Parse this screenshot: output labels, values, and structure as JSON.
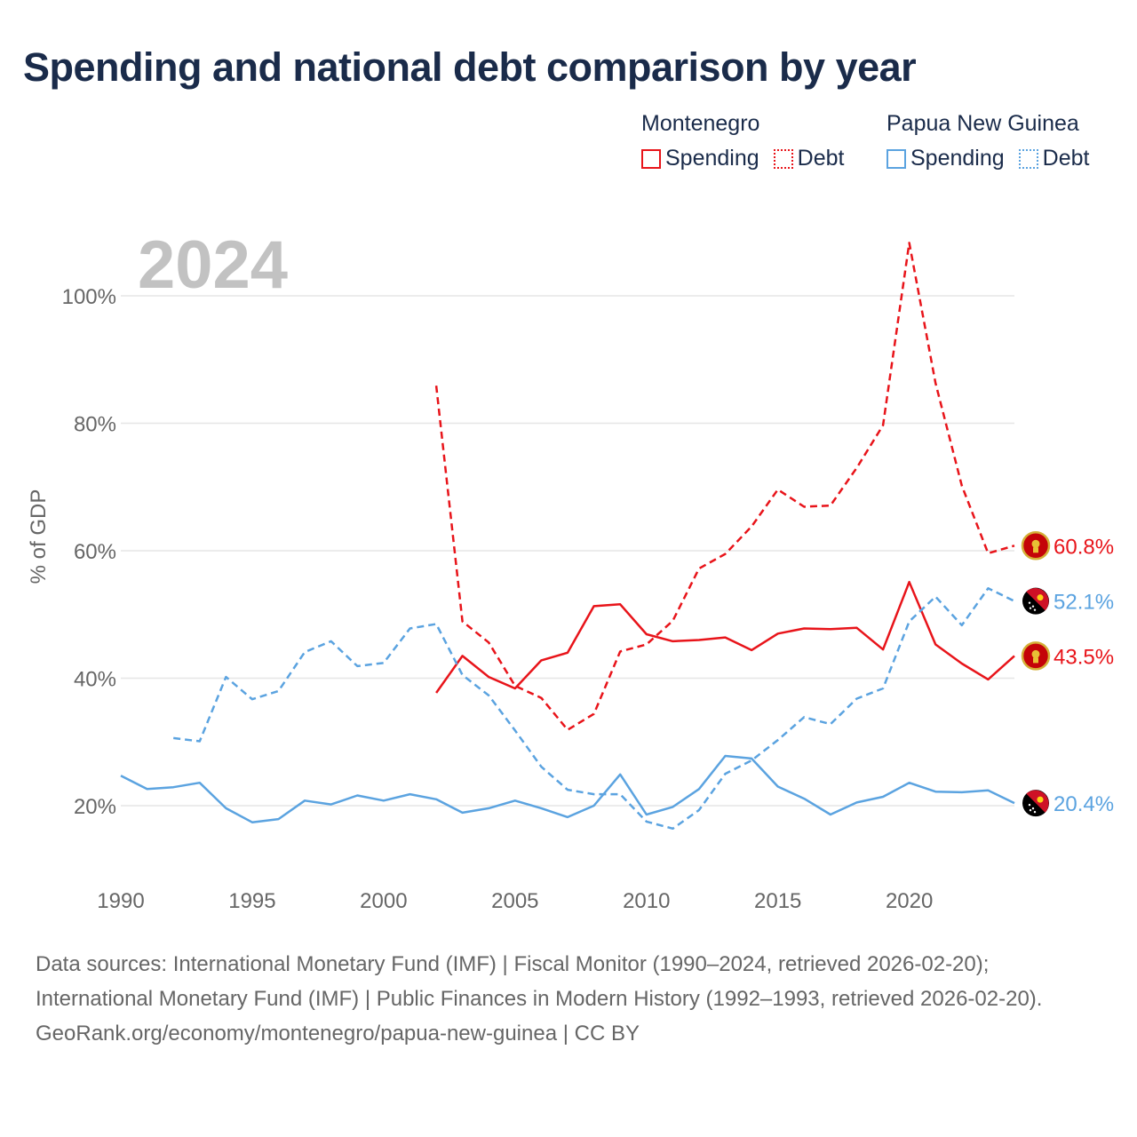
{
  "title": "Spending and national debt comparison by year",
  "legend": {
    "groups": [
      {
        "name": "Montenegro",
        "spending_label": "Spending",
        "debt_label": "Debt",
        "color": "#e8141a"
      },
      {
        "name": "Papua New Guinea",
        "spending_label": "Spending",
        "debt_label": "Debt",
        "color": "#5ba3e0"
      }
    ]
  },
  "year_watermark": "2024",
  "footer": {
    "sources": "Data sources: International Monetary Fund (IMF) | Fiscal Monitor (1990–2024, retrieved 2026-02-20); International Monetary Fund (IMF) | Public Finances in Modern History (1992–1993, retrieved 2026-02-20).",
    "credit": "GeoRank.org/economy/montenegro/papua-new-guinea | CC BY"
  },
  "chart_data": {
    "type": "line",
    "title": "Spending and national debt comparison by year",
    "xlabel": "",
    "ylabel": "% of GDP",
    "xlim": [
      1990,
      2024
    ],
    "ylim": [
      10,
      110
    ],
    "x_ticks": [
      1990,
      1995,
      2000,
      2005,
      2010,
      2015,
      2020
    ],
    "y_ticks": [
      20,
      40,
      60,
      80,
      100
    ],
    "y_tick_labels": [
      "20%",
      "40%",
      "60%",
      "80%",
      "100%"
    ],
    "grid": true,
    "series": [
      {
        "name": "Montenegro Spending",
        "style": "solid",
        "color": "#e8141a",
        "end_label": "43.5%",
        "x": [
          2002,
          2003,
          2004,
          2005,
          2006,
          2007,
          2008,
          2009,
          2010,
          2011,
          2012,
          2013,
          2014,
          2015,
          2016,
          2017,
          2018,
          2019,
          2020,
          2021,
          2022,
          2023,
          2024
        ],
        "y": [
          37.7,
          43.5,
          40.2,
          38.4,
          42.8,
          44.0,
          51.3,
          51.6,
          46.9,
          45.8,
          46.0,
          46.4,
          44.4,
          47.0,
          47.8,
          47.7,
          47.9,
          44.5,
          55.1,
          45.3,
          42.3,
          39.8,
          43.5
        ]
      },
      {
        "name": "Montenegro Debt",
        "style": "dashed",
        "color": "#e8141a",
        "end_label": "60.8%",
        "x": [
          2002,
          2003,
          2004,
          2005,
          2006,
          2007,
          2008,
          2009,
          2010,
          2011,
          2012,
          2013,
          2014,
          2015,
          2016,
          2017,
          2018,
          2019,
          2020,
          2021,
          2022,
          2023,
          2024
        ],
        "y": [
          85.9,
          48.9,
          45.6,
          38.8,
          36.9,
          31.9,
          34.4,
          44.2,
          45.3,
          49.0,
          57.2,
          59.5,
          63.8,
          69.6,
          66.9,
          67.1,
          73.0,
          79.7,
          108.3,
          86.3,
          70.2,
          59.6,
          60.8
        ]
      },
      {
        "name": "Papua New Guinea Spending",
        "style": "solid",
        "color": "#5ba3e0",
        "end_label": "20.4%",
        "x": [
          1990,
          1991,
          1992,
          1993,
          1994,
          1995,
          1996,
          1997,
          1998,
          1999,
          2000,
          2001,
          2002,
          2003,
          2004,
          2005,
          2006,
          2007,
          2008,
          2009,
          2010,
          2011,
          2012,
          2013,
          2014,
          2015,
          2016,
          2017,
          2018,
          2019,
          2020,
          2021,
          2022,
          2023,
          2024
        ],
        "y": [
          24.7,
          22.6,
          22.9,
          23.6,
          19.6,
          17.4,
          17.9,
          20.8,
          20.2,
          21.6,
          20.8,
          21.8,
          21.0,
          18.9,
          19.6,
          20.8,
          19.6,
          18.2,
          20.0,
          24.9,
          18.6,
          19.8,
          22.6,
          27.8,
          27.4,
          23.0,
          21.1,
          18.6,
          20.5,
          21.4,
          23.6,
          22.2,
          22.1,
          22.4,
          20.4
        ]
      },
      {
        "name": "Papua New Guinea Debt",
        "style": "dashed",
        "color": "#5ba3e0",
        "end_label": "52.1%",
        "x": [
          1992,
          1993,
          1994,
          1995,
          1996,
          1997,
          1998,
          1999,
          2000,
          2001,
          2002,
          2003,
          2004,
          2005,
          2006,
          2007,
          2008,
          2009,
          2010,
          2011,
          2012,
          2013,
          2014,
          2015,
          2016,
          2017,
          2018,
          2019,
          2020,
          2021,
          2022,
          2023,
          2024
        ],
        "y": [
          30.6,
          30.1,
          40.2,
          36.7,
          38.0,
          44.1,
          45.8,
          41.9,
          42.4,
          47.8,
          48.5,
          40.5,
          37.3,
          31.8,
          26.1,
          22.5,
          21.8,
          21.8,
          17.5,
          16.4,
          19.3,
          25.0,
          27.1,
          30.3,
          33.9,
          32.8,
          36.8,
          38.4,
          48.9,
          52.8,
          48.3,
          54.1,
          52.1
        ]
      }
    ]
  }
}
